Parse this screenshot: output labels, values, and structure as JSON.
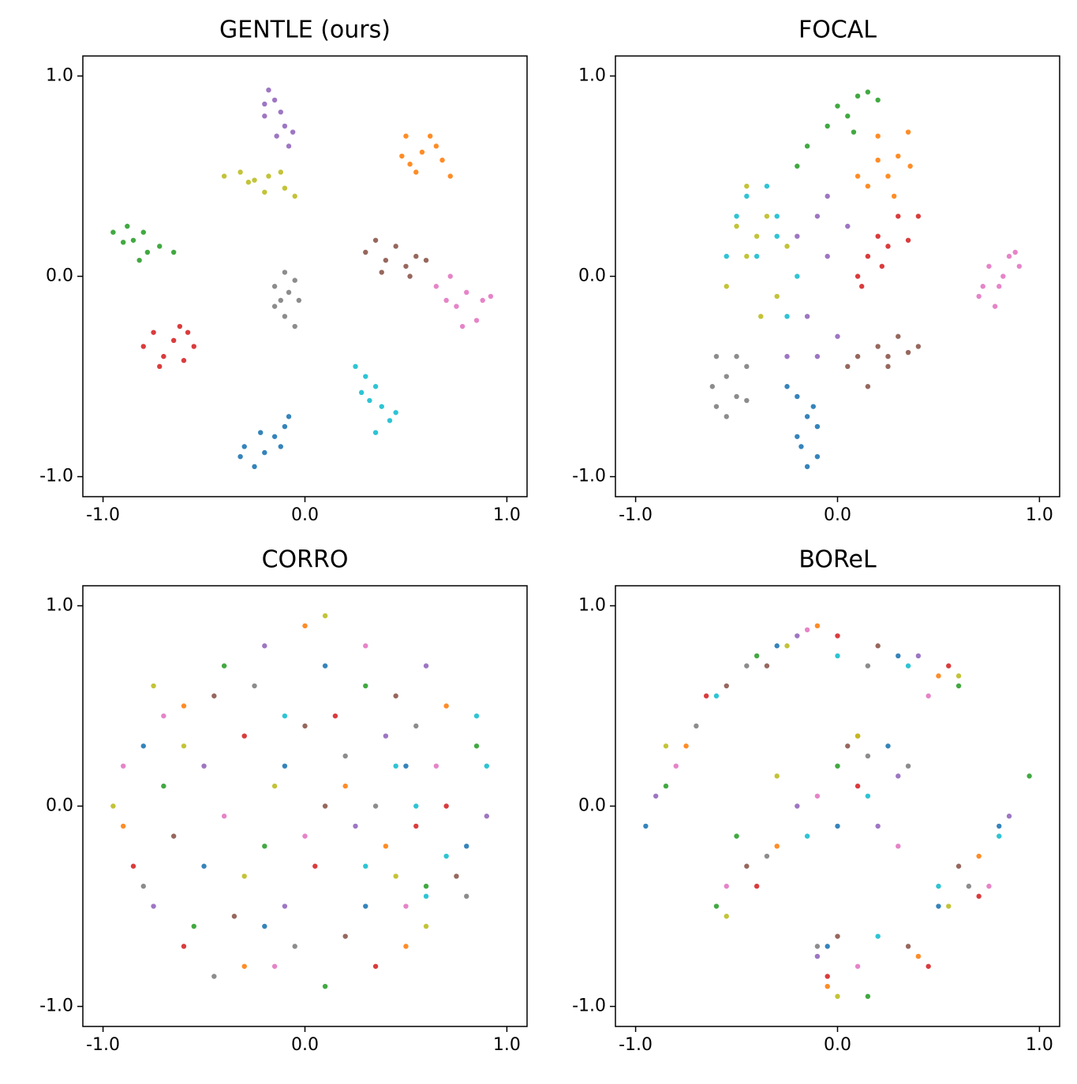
{
  "chart_data": [
    {
      "type": "scatter",
      "title": "GENTLE (ours)",
      "xlim": [
        -1.1,
        1.1
      ],
      "ylim": [
        -1.1,
        1.1
      ],
      "xticks": [
        {
          "value": -1,
          "label": "-1.0"
        },
        {
          "value": 0,
          "label": "0.0"
        },
        {
          "value": 1,
          "label": "1.0"
        }
      ],
      "yticks": [
        {
          "value": -1,
          "label": "-1.0"
        },
        {
          "value": 0,
          "label": "0.0"
        },
        {
          "value": 1,
          "label": "1.0"
        }
      ],
      "series": [
        {
          "color": "#1f77b4",
          "x": [
            -0.3,
            -0.32,
            -0.25,
            -0.2,
            -0.15,
            -0.1,
            -0.08,
            -0.22,
            -0.12
          ],
          "y": [
            -0.85,
            -0.9,
            -0.95,
            -0.88,
            -0.8,
            -0.75,
            -0.7,
            -0.78,
            -0.85
          ]
        },
        {
          "color": "#ff7f0e",
          "x": [
            0.5,
            0.62,
            0.48,
            0.58,
            0.68,
            0.55,
            0.72,
            0.65,
            0.52
          ],
          "y": [
            0.7,
            0.7,
            0.6,
            0.62,
            0.58,
            0.52,
            0.5,
            0.65,
            0.56
          ]
        },
        {
          "color": "#2ca02c",
          "x": [
            -0.95,
            -0.88,
            -0.85,
            -0.8,
            -0.78,
            -0.72,
            -0.65,
            -0.82,
            -0.9
          ],
          "y": [
            0.22,
            0.25,
            0.18,
            0.22,
            0.12,
            0.15,
            0.12,
            0.08,
            0.17
          ]
        },
        {
          "color": "#d62728",
          "x": [
            -0.8,
            -0.75,
            -0.7,
            -0.65,
            -0.6,
            -0.58,
            -0.55,
            -0.72,
            -0.62
          ],
          "y": [
            -0.35,
            -0.28,
            -0.4,
            -0.32,
            -0.42,
            -0.28,
            -0.35,
            -0.45,
            -0.25
          ]
        },
        {
          "color": "#9467bd",
          "x": [
            -0.18,
            -0.15,
            -0.2,
            -0.12,
            -0.1,
            -0.14,
            -0.08,
            -0.06,
            -0.2
          ],
          "y": [
            0.93,
            0.88,
            0.8,
            0.82,
            0.75,
            0.7,
            0.65,
            0.72,
            0.86
          ]
        },
        {
          "color": "#8c564b",
          "x": [
            0.3,
            0.35,
            0.4,
            0.45,
            0.5,
            0.55,
            0.52,
            0.38,
            0.6
          ],
          "y": [
            0.12,
            0.18,
            0.08,
            0.15,
            0.05,
            0.1,
            0.0,
            0.02,
            0.08
          ]
        },
        {
          "color": "#e377c2",
          "x": [
            0.65,
            0.72,
            0.8,
            0.88,
            0.75,
            0.85,
            0.92,
            0.78,
            0.7
          ],
          "y": [
            -0.05,
            0.0,
            -0.08,
            -0.12,
            -0.15,
            -0.22,
            -0.1,
            -0.25,
            -0.12
          ]
        },
        {
          "color": "#7f7f7f",
          "x": [
            -0.15,
            -0.1,
            -0.05,
            -0.12,
            -0.03,
            -0.1,
            -0.05,
            -0.15,
            -0.08
          ],
          "y": [
            -0.05,
            0.02,
            -0.02,
            -0.12,
            -0.12,
            -0.2,
            -0.25,
            -0.15,
            -0.08
          ]
        },
        {
          "color": "#bcbd22",
          "x": [
            -0.4,
            -0.32,
            -0.25,
            -0.18,
            -0.1,
            -0.05,
            -0.2,
            -0.28,
            -0.12
          ],
          "y": [
            0.5,
            0.52,
            0.48,
            0.5,
            0.44,
            0.4,
            0.42,
            0.47,
            0.52
          ]
        },
        {
          "color": "#17becf",
          "x": [
            0.25,
            0.3,
            0.28,
            0.35,
            0.38,
            0.42,
            0.35,
            0.45,
            0.32
          ],
          "y": [
            -0.45,
            -0.5,
            -0.58,
            -0.55,
            -0.65,
            -0.72,
            -0.78,
            -0.68,
            -0.62
          ]
        }
      ]
    },
    {
      "type": "scatter",
      "title": "FOCAL",
      "xlim": [
        -1.1,
        1.1
      ],
      "ylim": [
        -1.1,
        1.1
      ],
      "xticks": [
        {
          "value": -1,
          "label": "-1.0"
        },
        {
          "value": 0,
          "label": "0.0"
        },
        {
          "value": 1,
          "label": "1.0"
        }
      ],
      "yticks": [
        {
          "value": -1,
          "label": "-1.0"
        },
        {
          "value": 0,
          "label": "0.0"
        },
        {
          "value": 1,
          "label": "1.0"
        }
      ],
      "series": [
        {
          "color": "#1f77b4",
          "x": [
            -0.2,
            -0.15,
            -0.1,
            -0.18,
            -0.15,
            -0.25,
            -0.12,
            -0.2,
            -0.1
          ],
          "y": [
            -0.6,
            -0.7,
            -0.75,
            -0.85,
            -0.95,
            -0.55,
            -0.65,
            -0.8,
            -0.9
          ]
        },
        {
          "color": "#ff7f0e",
          "x": [
            0.2,
            0.3,
            0.25,
            0.15,
            0.35,
            0.28,
            0.1,
            0.2,
            0.36
          ],
          "y": [
            0.7,
            0.6,
            0.5,
            0.45,
            0.72,
            0.4,
            0.5,
            0.58,
            0.55
          ]
        },
        {
          "color": "#2ca02c",
          "x": [
            0.0,
            0.05,
            0.1,
            0.15,
            -0.05,
            -0.15,
            0.08,
            -0.2,
            0.2
          ],
          "y": [
            0.85,
            0.8,
            0.9,
            0.92,
            0.75,
            0.65,
            0.72,
            0.55,
            0.88
          ]
        },
        {
          "color": "#d62728",
          "x": [
            0.15,
            0.2,
            0.25,
            0.3,
            0.1,
            0.22,
            0.35,
            0.4,
            0.12
          ],
          "y": [
            0.1,
            0.2,
            0.15,
            0.3,
            0.0,
            0.05,
            0.18,
            0.3,
            -0.05
          ]
        },
        {
          "color": "#9467bd",
          "x": [
            -0.1,
            -0.05,
            -0.15,
            0.0,
            -0.2,
            -0.1,
            -0.05,
            -0.25,
            0.05
          ],
          "y": [
            0.3,
            0.1,
            -0.2,
            -0.3,
            0.2,
            -0.4,
            0.4,
            -0.4,
            0.25
          ]
        },
        {
          "color": "#8c564b",
          "x": [
            0.1,
            0.2,
            0.25,
            0.3,
            0.35,
            0.15,
            0.4,
            0.05,
            0.25
          ],
          "y": [
            -0.4,
            -0.35,
            -0.45,
            -0.3,
            -0.38,
            -0.55,
            -0.35,
            -0.45,
            -0.4
          ]
        },
        {
          "color": "#e377c2",
          "x": [
            0.7,
            0.75,
            0.8,
            0.85,
            0.9,
            0.78,
            0.72,
            0.88,
            0.82
          ],
          "y": [
            -0.1,
            0.05,
            -0.05,
            0.1,
            0.05,
            -0.15,
            -0.05,
            0.12,
            0.0
          ]
        },
        {
          "color": "#7f7f7f",
          "x": [
            -0.6,
            -0.55,
            -0.6,
            -0.5,
            -0.45,
            -0.55,
            -0.5,
            -0.62,
            -0.45
          ],
          "y": [
            -0.4,
            -0.5,
            -0.65,
            -0.6,
            -0.45,
            -0.7,
            -0.4,
            -0.55,
            -0.62
          ]
        },
        {
          "color": "#bcbd22",
          "x": [
            -0.45,
            -0.35,
            -0.55,
            -0.3,
            -0.4,
            -0.25,
            -0.5,
            -0.38,
            -0.45
          ],
          "y": [
            0.1,
            0.3,
            -0.05,
            -0.1,
            0.2,
            0.15,
            0.25,
            -0.2,
            0.45
          ]
        },
        {
          "color": "#17becf",
          "x": [
            -0.5,
            -0.4,
            -0.3,
            -0.45,
            -0.35,
            -0.2,
            -0.55,
            -0.25,
            -0.3
          ],
          "y": [
            0.3,
            0.1,
            0.2,
            0.4,
            0.45,
            0.0,
            0.1,
            -0.2,
            0.3
          ]
        }
      ]
    },
    {
      "type": "scatter",
      "title": "CORRO",
      "xlim": [
        -1.1,
        1.1
      ],
      "ylim": [
        -1.1,
        1.1
      ],
      "xticks": [
        {
          "value": -1,
          "label": "-1.0"
        },
        {
          "value": 0,
          "label": "0.0"
        },
        {
          "value": 1,
          "label": "1.0"
        }
      ],
      "yticks": [
        {
          "value": -1,
          "label": "-1.0"
        },
        {
          "value": 0,
          "label": "0.0"
        },
        {
          "value": 1,
          "label": "1.0"
        }
      ],
      "series": [
        {
          "color": "#1f77b4",
          "x": [
            -0.8,
            -0.2,
            0.5,
            0.1,
            -0.5,
            0.8,
            0.3,
            -0.1
          ],
          "y": [
            0.3,
            -0.6,
            0.2,
            0.7,
            -0.3,
            -0.2,
            -0.5,
            0.2
          ]
        },
        {
          "color": "#ff7f0e",
          "x": [
            -0.6,
            0.2,
            0.7,
            -0.3,
            0.4,
            -0.9,
            0.0,
            0.5
          ],
          "y": [
            0.5,
            0.1,
            0.5,
            -0.8,
            -0.2,
            -0.1,
            0.9,
            -0.7
          ]
        },
        {
          "color": "#2ca02c",
          "x": [
            -0.7,
            0.3,
            -0.2,
            0.6,
            -0.4,
            0.1,
            0.85,
            -0.55
          ],
          "y": [
            0.1,
            0.6,
            -0.2,
            -0.4,
            0.7,
            -0.9,
            0.3,
            -0.6
          ]
        },
        {
          "color": "#d62728",
          "x": [
            -0.85,
            0.15,
            0.55,
            -0.3,
            0.35,
            -0.6,
            0.7,
            0.05
          ],
          "y": [
            -0.3,
            0.45,
            -0.1,
            0.35,
            -0.8,
            -0.7,
            0.0,
            -0.3
          ]
        },
        {
          "color": "#9467bd",
          "x": [
            -0.5,
            0.25,
            0.6,
            -0.1,
            0.4,
            -0.75,
            0.9,
            -0.2
          ],
          "y": [
            0.2,
            -0.1,
            0.7,
            -0.5,
            0.35,
            -0.5,
            -0.05,
            0.8
          ]
        },
        {
          "color": "#8c564b",
          "x": [
            -0.65,
            0.0,
            0.45,
            -0.35,
            0.2,
            0.75,
            -0.45,
            0.1
          ],
          "y": [
            -0.15,
            0.4,
            0.55,
            -0.55,
            -0.65,
            -0.35,
            0.55,
            0.0
          ]
        },
        {
          "color": "#e377c2",
          "x": [
            -0.9,
            -0.15,
            0.5,
            0.3,
            -0.4,
            0.65,
            0.0,
            -0.7
          ],
          "y": [
            0.2,
            -0.8,
            -0.5,
            0.8,
            -0.05,
            0.2,
            -0.15,
            0.45
          ]
        },
        {
          "color": "#7f7f7f",
          "x": [
            -0.8,
            -0.25,
            0.35,
            0.2,
            -0.45,
            0.55,
            -0.05,
            0.8
          ],
          "y": [
            -0.4,
            0.6,
            0.0,
            0.25,
            -0.85,
            0.4,
            -0.7,
            -0.45
          ]
        },
        {
          "color": "#bcbd22",
          "x": [
            -0.95,
            -0.6,
            -0.3,
            0.1,
            0.45,
            -0.15,
            0.6,
            -0.75
          ],
          "y": [
            0.0,
            0.3,
            -0.35,
            0.95,
            -0.35,
            0.1,
            -0.6,
            0.6
          ]
        },
        {
          "color": "#17becf",
          "x": [
            0.9,
            0.7,
            0.55,
            0.3,
            0.85,
            0.45,
            -0.1,
            0.6
          ],
          "y": [
            0.2,
            -0.25,
            0.0,
            -0.3,
            0.45,
            0.2,
            0.45,
            -0.45
          ]
        }
      ]
    },
    {
      "type": "scatter",
      "title": "BOReL",
      "xlim": [
        -1.1,
        1.1
      ],
      "ylim": [
        -1.1,
        1.1
      ],
      "xticks": [
        {
          "value": -1,
          "label": "-1.0"
        },
        {
          "value": 0,
          "label": "0.0"
        },
        {
          "value": 1,
          "label": "1.0"
        }
      ],
      "yticks": [
        {
          "value": -1,
          "label": "-1.0"
        },
        {
          "value": 0,
          "label": "0.0"
        },
        {
          "value": 1,
          "label": "1.0"
        }
      ],
      "series": [
        {
          "color": "#1f77b4",
          "x": [
            -0.95,
            -0.3,
            0.3,
            0.0,
            -0.05,
            0.5,
            0.8,
            0.25
          ],
          "y": [
            -0.1,
            0.8,
            0.75,
            -0.1,
            -0.7,
            -0.5,
            -0.1,
            0.3
          ]
        },
        {
          "color": "#ff7f0e",
          "x": [
            -0.75,
            -0.1,
            0.5,
            -0.3,
            0.1,
            0.4,
            0.7,
            -0.05
          ],
          "y": [
            0.3,
            0.9,
            0.65,
            -0.2,
            0.35,
            -0.75,
            -0.25,
            -0.9
          ]
        },
        {
          "color": "#2ca02c",
          "x": [
            -0.85,
            -0.4,
            0.6,
            -0.6,
            -0.5,
            0.15,
            0.95,
            0.0
          ],
          "y": [
            0.1,
            0.75,
            0.6,
            -0.5,
            -0.15,
            -0.95,
            0.15,
            0.2
          ]
        },
        {
          "color": "#d62728",
          "x": [
            -0.65,
            0.0,
            0.55,
            -0.4,
            0.1,
            0.45,
            0.7,
            -0.05
          ],
          "y": [
            0.55,
            0.85,
            0.7,
            -0.4,
            0.1,
            -0.8,
            -0.45,
            -0.85
          ]
        },
        {
          "color": "#9467bd",
          "x": [
            -0.9,
            -0.2,
            0.4,
            -0.2,
            0.2,
            -0.1,
            0.85,
            0.3
          ],
          "y": [
            0.05,
            0.85,
            0.75,
            0.0,
            -0.1,
            -0.75,
            -0.05,
            0.15
          ]
        },
        {
          "color": "#8c564b",
          "x": [
            -0.55,
            -0.35,
            0.2,
            -0.45,
            0.05,
            0.35,
            0.6,
            0.0
          ],
          "y": [
            0.6,
            0.7,
            0.8,
            -0.3,
            0.3,
            -0.7,
            -0.3,
            -0.65
          ]
        },
        {
          "color": "#e377c2",
          "x": [
            -0.8,
            -0.15,
            0.45,
            -0.55,
            -0.1,
            0.1,
            0.75,
            0.3
          ],
          "y": [
            0.2,
            0.88,
            0.55,
            -0.4,
            0.05,
            -0.8,
            -0.4,
            -0.2
          ]
        },
        {
          "color": "#7f7f7f",
          "x": [
            -0.7,
            -0.45,
            0.15,
            -0.35,
            0.15,
            -0.1,
            0.65,
            0.35
          ],
          "y": [
            0.4,
            0.7,
            0.7,
            -0.25,
            0.25,
            -0.7,
            -0.4,
            0.2
          ]
        },
        {
          "color": "#bcbd22",
          "x": [
            -0.85,
            -0.25,
            0.6,
            -0.3,
            0.1,
            0.0,
            0.55,
            -0.55
          ],
          "y": [
            0.3,
            0.8,
            0.65,
            0.15,
            0.35,
            -0.95,
            -0.5,
            -0.55
          ]
        },
        {
          "color": "#17becf",
          "x": [
            -0.6,
            0.0,
            0.35,
            -0.15,
            0.15,
            0.2,
            0.5,
            0.8
          ],
          "y": [
            0.55,
            0.75,
            0.7,
            -0.15,
            0.05,
            -0.65,
            -0.4,
            -0.15
          ]
        }
      ]
    }
  ]
}
